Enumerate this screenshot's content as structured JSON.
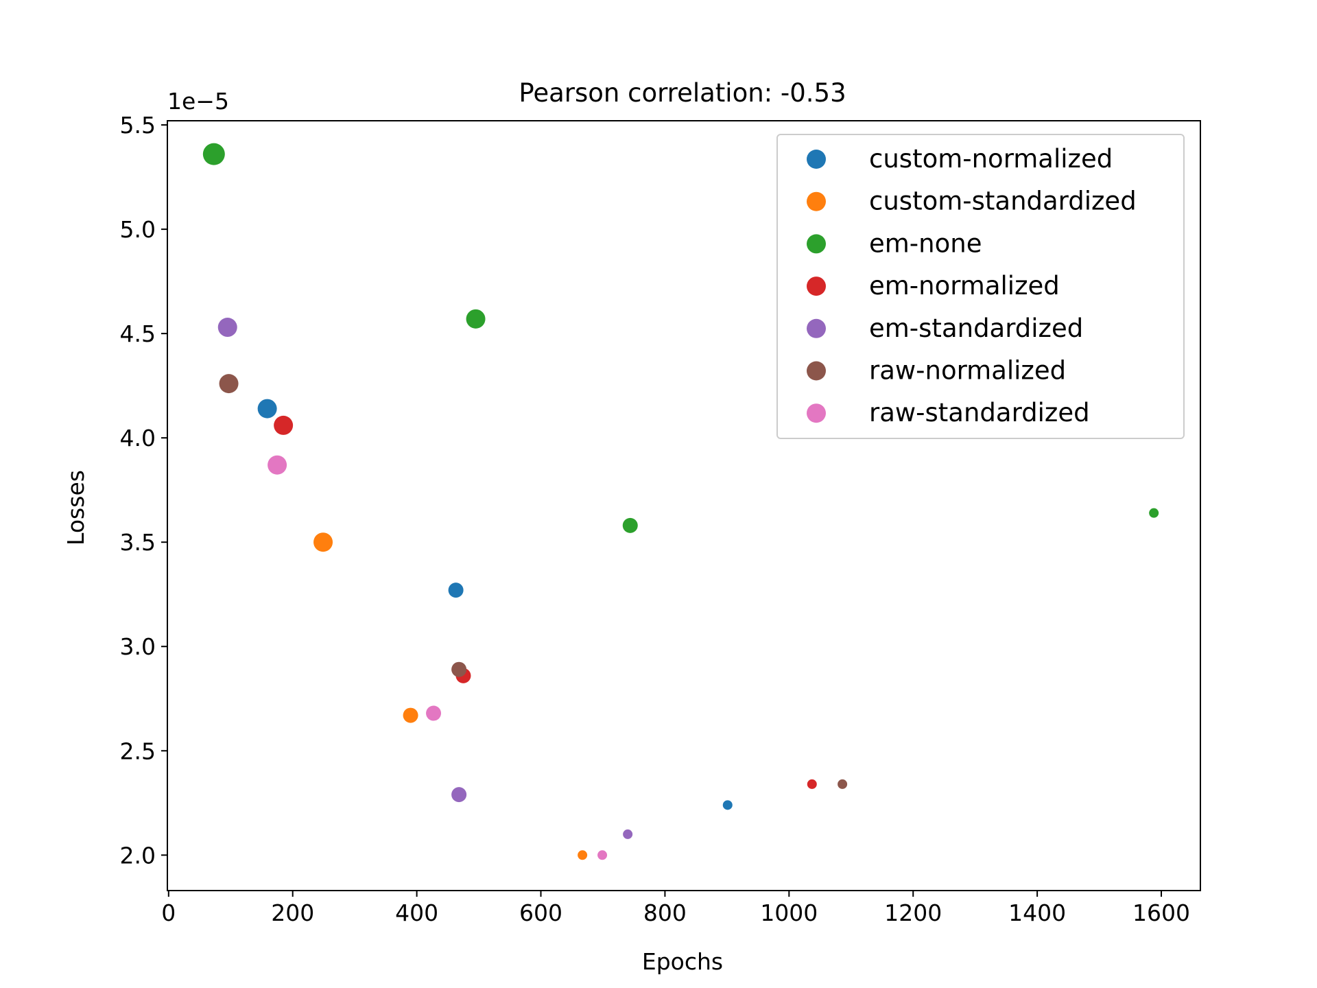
{
  "chart_data": {
    "type": "scatter",
    "title": "Pearson correlation: -0.53",
    "xlabel": "Epochs",
    "ylabel": "Losses",
    "y_offset_label": "1e−5",
    "xlim": [
      -2,
      1663
    ],
    "ylim": [
      1.83,
      5.52
    ],
    "xticks": [
      {
        "value": 0,
        "label": "0"
      },
      {
        "value": 200,
        "label": "200"
      },
      {
        "value": 400,
        "label": "400"
      },
      {
        "value": 600,
        "label": "600"
      },
      {
        "value": 800,
        "label": "800"
      },
      {
        "value": 1000,
        "label": "1000"
      },
      {
        "value": 1200,
        "label": "1200"
      },
      {
        "value": 1400,
        "label": "1400"
      },
      {
        "value": 1600,
        "label": "1600"
      }
    ],
    "yticks": [
      {
        "value": 2.0,
        "label": "2.0"
      },
      {
        "value": 2.5,
        "label": "2.5"
      },
      {
        "value": 3.0,
        "label": "3.0"
      },
      {
        "value": 3.5,
        "label": "3.5"
      },
      {
        "value": 4.0,
        "label": "4.0"
      },
      {
        "value": 4.5,
        "label": "4.5"
      },
      {
        "value": 5.0,
        "label": "5.0"
      },
      {
        "value": 5.5,
        "label": "5.5"
      }
    ],
    "grid": false,
    "legend_position": "top-right",
    "marker_size_note": "larger markers for smaller epoch counts",
    "series": [
      {
        "name": "custom-normalized",
        "color": "#1f77b4",
        "points": [
          {
            "x": 159,
            "y": 4.14,
            "s": 3
          },
          {
            "x": 463,
            "y": 3.27,
            "s": 2
          },
          {
            "x": 901,
            "y": 2.24,
            "s": 1
          }
        ]
      },
      {
        "name": "custom-standardized",
        "color": "#ff7f0e",
        "points": [
          {
            "x": 249,
            "y": 3.5,
            "s": 3
          },
          {
            "x": 390,
            "y": 2.67,
            "s": 2
          },
          {
            "x": 667,
            "y": 2.0,
            "s": 1
          }
        ]
      },
      {
        "name": "em-none",
        "color": "#2ca02c",
        "points": [
          {
            "x": 73,
            "y": 5.36,
            "s": 4
          },
          {
            "x": 495,
            "y": 4.57,
            "s": 3
          },
          {
            "x": 744,
            "y": 3.58,
            "s": 2
          },
          {
            "x": 1588,
            "y": 3.64,
            "s": 1
          }
        ]
      },
      {
        "name": "em-normalized",
        "color": "#d62728",
        "points": [
          {
            "x": 185,
            "y": 4.06,
            "s": 3
          },
          {
            "x": 475,
            "y": 2.86,
            "s": 2
          },
          {
            "x": 1037,
            "y": 2.34,
            "s": 1
          }
        ]
      },
      {
        "name": "em-standardized",
        "color": "#9467bd",
        "points": [
          {
            "x": 95,
            "y": 4.53,
            "s": 3
          },
          {
            "x": 468,
            "y": 2.29,
            "s": 2
          },
          {
            "x": 740,
            "y": 2.1,
            "s": 1
          }
        ]
      },
      {
        "name": "raw-normalized",
        "color": "#8c564b",
        "points": [
          {
            "x": 97,
            "y": 4.26,
            "s": 3
          },
          {
            "x": 468,
            "y": 2.89,
            "s": 2
          },
          {
            "x": 1086,
            "y": 2.34,
            "s": 1
          }
        ]
      },
      {
        "name": "raw-standardized",
        "color": "#e377c2",
        "points": [
          {
            "x": 175,
            "y": 3.87,
            "s": 3
          },
          {
            "x": 427,
            "y": 2.68,
            "s": 2
          },
          {
            "x": 699,
            "y": 2.0,
            "s": 1
          }
        ]
      }
    ]
  }
}
